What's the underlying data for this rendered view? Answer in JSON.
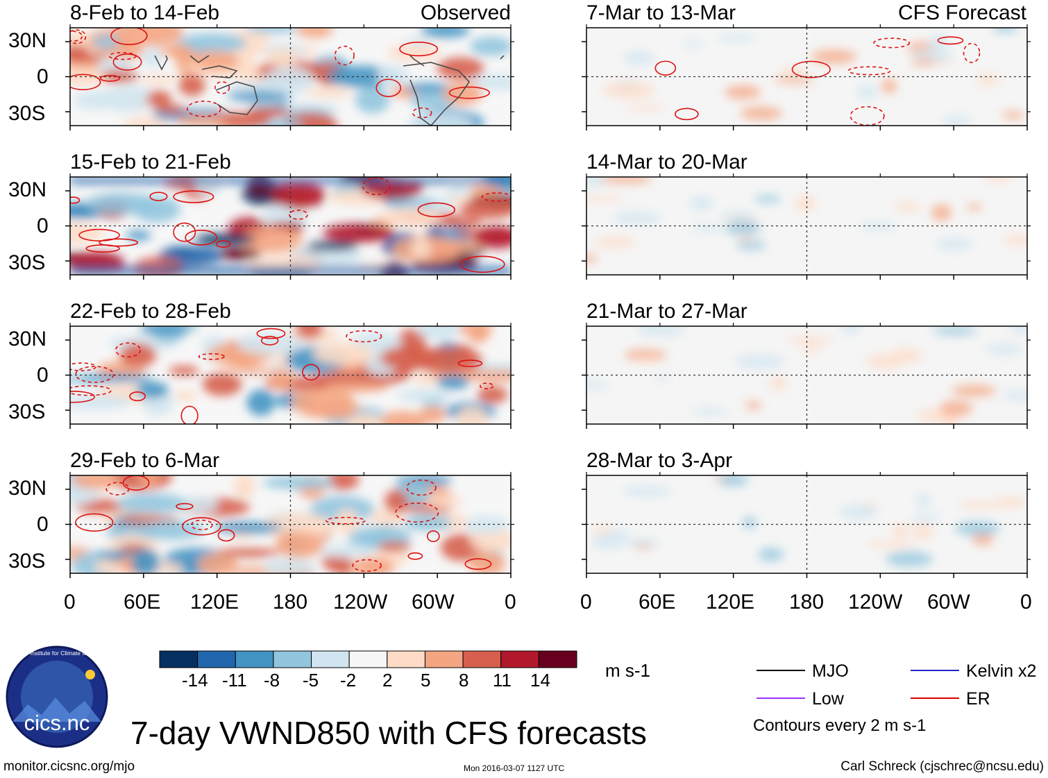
{
  "title": "7-day VWND850 with CFS forecasts",
  "left_column_label": "Observed",
  "right_column_label": "CFS Forecast",
  "panels_left": [
    {
      "period": "8-Feb to 14-Feb"
    },
    {
      "period": "15-Feb to 21-Feb"
    },
    {
      "period": "22-Feb to 28-Feb"
    },
    {
      "period": "29-Feb to 6-Mar"
    }
  ],
  "panels_right": [
    {
      "period": "7-Mar to 13-Mar"
    },
    {
      "period": "14-Mar to 20-Mar"
    },
    {
      "period": "21-Mar to 27-Mar"
    },
    {
      "period": "28-Mar to 3-Apr"
    }
  ],
  "lat_labels": [
    "30N",
    "0",
    "30S"
  ],
  "lon_labels": [
    "0",
    "60E",
    "120E",
    "180",
    "120W",
    "60W",
    "0"
  ],
  "colorbar": {
    "units": "m s-1",
    "labels": [
      "-14",
      "-11",
      "-8",
      "-5",
      "-2",
      "2",
      "5",
      "8",
      "11",
      "14"
    ],
    "colors": [
      "#053061",
      "#2166ac",
      "#4393c3",
      "#92c5de",
      "#d1e5f0",
      "#f7f7f7",
      "#fddbc7",
      "#f4a582",
      "#d6604d",
      "#b2182b",
      "#67001f"
    ]
  },
  "legend": {
    "items": [
      {
        "label": "MJO",
        "color": "#000000"
      },
      {
        "label": "Kelvin x2",
        "color": "#2222cc"
      },
      {
        "label": "Low",
        "color": "#9933ff"
      },
      {
        "label": "ER",
        "color": "#dd0000"
      }
    ],
    "note": "Contours every 2 m s-1"
  },
  "logo_text": "cics.nc",
  "logo_ring_text": "Cooperative Institute for Climate and Satellites",
  "footer": {
    "left": "monitor.cicsnc.org/mjo",
    "center": "Mon 2016-03-07 1127 UTC",
    "right": "Carl Schreck (cjschrec@ncsu.edu)"
  }
}
